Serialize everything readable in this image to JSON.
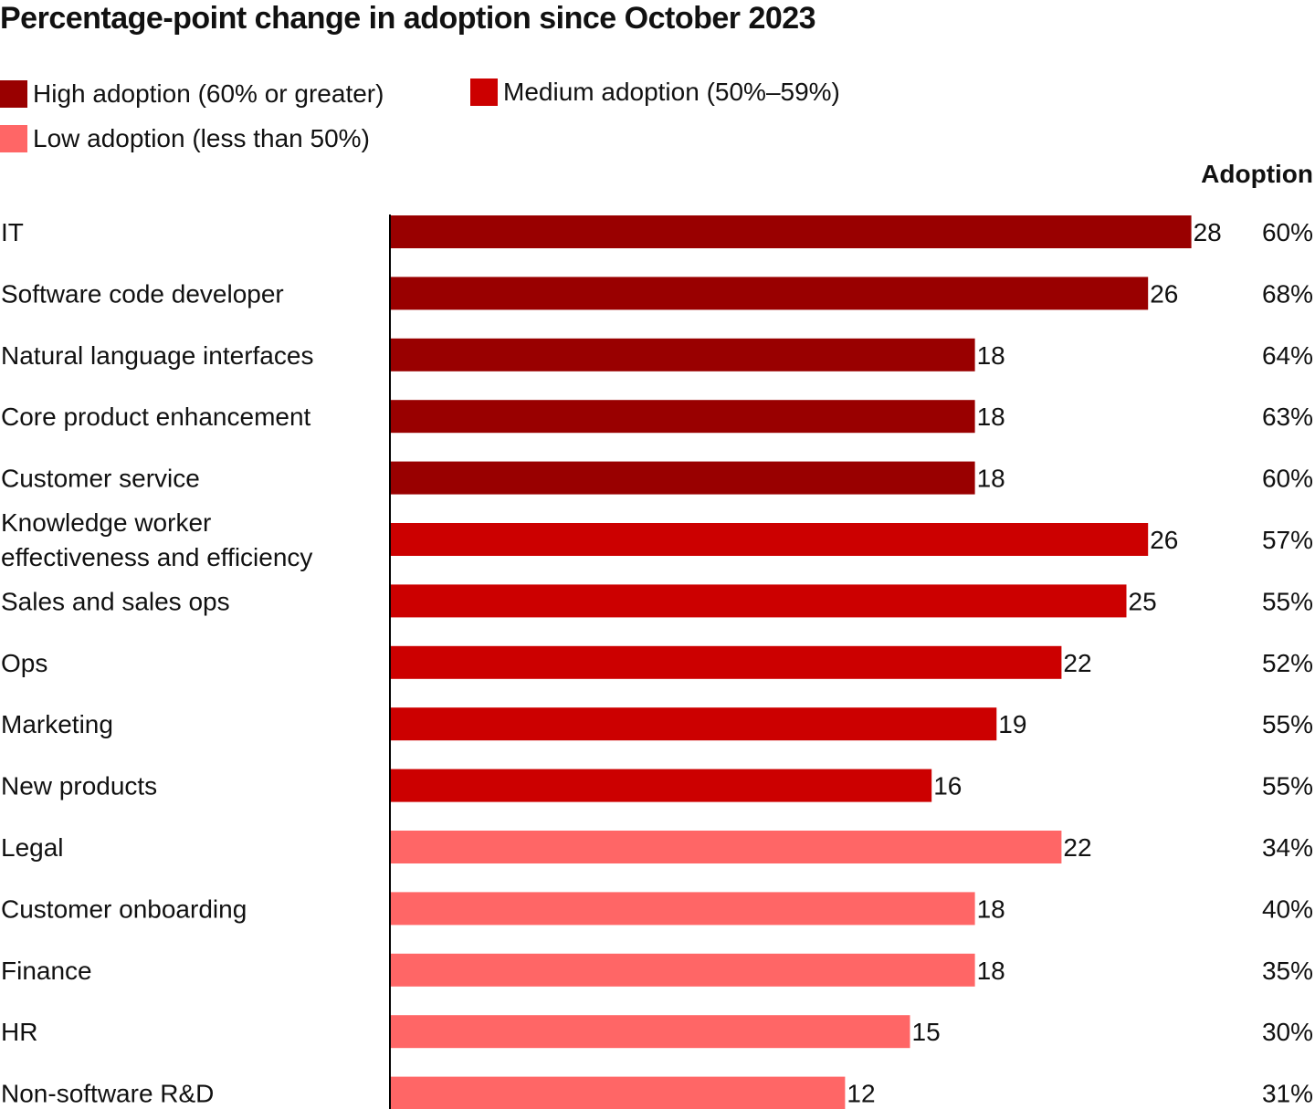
{
  "chart_data": {
    "type": "bar",
    "orientation": "horizontal",
    "title": "Percentage-point change in adoption since October 2023",
    "xlabel": "",
    "ylabel": "",
    "legend": [
      {
        "key": "high",
        "label": "High adoption (60% or greater)",
        "color": "#990000"
      },
      {
        "key": "medium",
        "label": "Medium adoption (50%–59%)",
        "color": "#CC0000"
      },
      {
        "key": "low",
        "label": "Low adoption (less than 50%)",
        "color": "#FF6666"
      }
    ],
    "legend_position": "top-left",
    "adoption_column_header": "Adoption",
    "categories": [
      "IT",
      "Software code developer",
      "Natural language interfaces",
      "Core product enhancement",
      "Customer service",
      "Knowledge worker effectiveness and efficiency",
      "Sales and sales ops",
      "Ops",
      "Marketing",
      "New products",
      "Legal",
      "Customer onboarding",
      "Finance",
      "HR",
      "Non-software R&D"
    ],
    "category_lines": [
      [
        "IT"
      ],
      [
        "Software code developer"
      ],
      [
        "Natural language interfaces"
      ],
      [
        "Core product enhancement"
      ],
      [
        "Customer service"
      ],
      [
        "Knowledge worker",
        "effectiveness and efficiency"
      ],
      [
        "Sales and sales ops"
      ],
      [
        "Ops"
      ],
      [
        "Marketing"
      ],
      [
        "New products"
      ],
      [
        "Legal"
      ],
      [
        "Customer onboarding"
      ],
      [
        "Finance"
      ],
      [
        "HR"
      ],
      [
        "Non-software R&D"
      ]
    ],
    "values": [
      28,
      26,
      18,
      18,
      18,
      26,
      25,
      22,
      19,
      16,
      22,
      18,
      18,
      15,
      12
    ],
    "value_labels": [
      "28",
      "26",
      "18",
      "18",
      "18",
      "26",
      "25",
      "22",
      "19",
      "16",
      "22",
      "18",
      "18",
      "15",
      "12"
    ],
    "adoption": [
      "60%",
      "68%",
      "64%",
      "63%",
      "60%",
      "57%",
      "55%",
      "52%",
      "55%",
      "55%",
      "34%",
      "40%",
      "35%",
      "30%",
      "31%"
    ],
    "group": [
      "high",
      "high",
      "high",
      "high",
      "high",
      "medium",
      "medium",
      "medium",
      "medium",
      "medium",
      "low",
      "low",
      "low",
      "low",
      "low"
    ],
    "grid": false
  }
}
